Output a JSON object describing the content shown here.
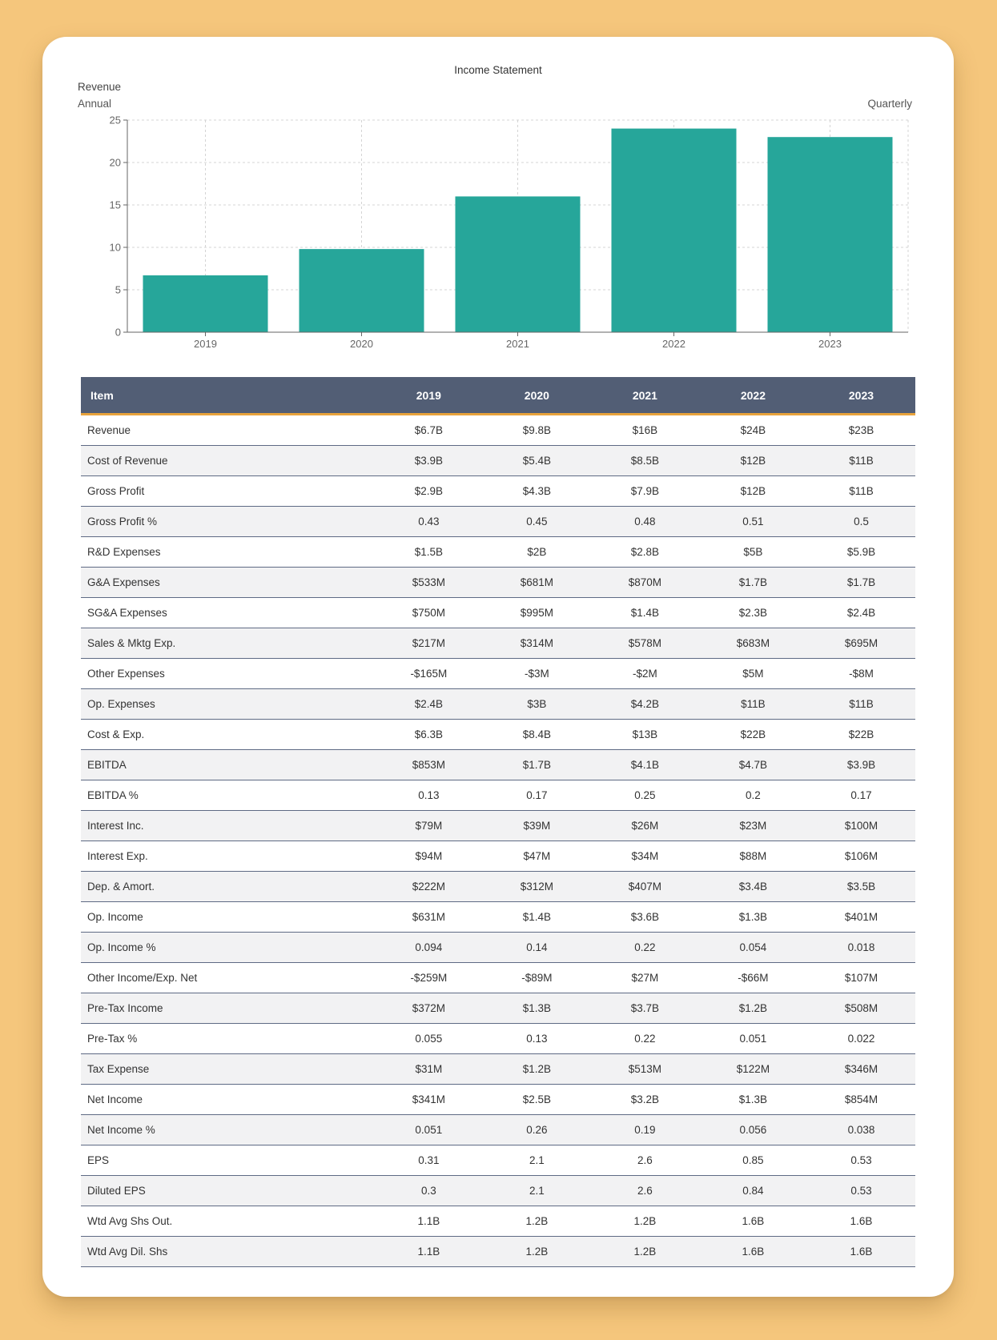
{
  "chart": {
    "title": "Income Statement",
    "metric": "Revenue",
    "period_annual": "Annual",
    "period_quarterly": "Quarterly"
  },
  "chart_data": {
    "type": "bar",
    "categories": [
      "2019",
      "2020",
      "2021",
      "2022",
      "2023"
    ],
    "values": [
      6.7,
      9.8,
      16,
      24,
      23
    ],
    "ylim": [
      0,
      25
    ],
    "yticks": [
      0,
      5,
      10,
      15,
      20,
      25
    ],
    "grid": true,
    "bar_color": "#26a69a",
    "title": "Income Statement",
    "xlabel": "",
    "ylabel": ""
  },
  "table": {
    "headers": [
      "Item",
      "2019",
      "2020",
      "2021",
      "2022",
      "2023"
    ],
    "rows": [
      [
        "Revenue",
        "$6.7B",
        "$9.8B",
        "$16B",
        "$24B",
        "$23B"
      ],
      [
        "Cost of Revenue",
        "$3.9B",
        "$5.4B",
        "$8.5B",
        "$12B",
        "$11B"
      ],
      [
        "Gross Profit",
        "$2.9B",
        "$4.3B",
        "$7.9B",
        "$12B",
        "$11B"
      ],
      [
        "Gross Profit %",
        "0.43",
        "0.45",
        "0.48",
        "0.51",
        "0.5"
      ],
      [
        "R&D Expenses",
        "$1.5B",
        "$2B",
        "$2.8B",
        "$5B",
        "$5.9B"
      ],
      [
        "G&A Expenses",
        "$533M",
        "$681M",
        "$870M",
        "$1.7B",
        "$1.7B"
      ],
      [
        "SG&A Expenses",
        "$750M",
        "$995M",
        "$1.4B",
        "$2.3B",
        "$2.4B"
      ],
      [
        "Sales & Mktg Exp.",
        "$217M",
        "$314M",
        "$578M",
        "$683M",
        "$695M"
      ],
      [
        "Other Expenses",
        "-$165M",
        "-$3M",
        "-$2M",
        "$5M",
        "-$8M"
      ],
      [
        "Op. Expenses",
        "$2.4B",
        "$3B",
        "$4.2B",
        "$11B",
        "$11B"
      ],
      [
        "Cost & Exp.",
        "$6.3B",
        "$8.4B",
        "$13B",
        "$22B",
        "$22B"
      ],
      [
        "EBITDA",
        "$853M",
        "$1.7B",
        "$4.1B",
        "$4.7B",
        "$3.9B"
      ],
      [
        "EBITDA %",
        "0.13",
        "0.17",
        "0.25",
        "0.2",
        "0.17"
      ],
      [
        "Interest Inc.",
        "$79M",
        "$39M",
        "$26M",
        "$23M",
        "$100M"
      ],
      [
        "Interest Exp.",
        "$94M",
        "$47M",
        "$34M",
        "$88M",
        "$106M"
      ],
      [
        "Dep. & Amort.",
        "$222M",
        "$312M",
        "$407M",
        "$3.4B",
        "$3.5B"
      ],
      [
        "Op. Income",
        "$631M",
        "$1.4B",
        "$3.6B",
        "$1.3B",
        "$401M"
      ],
      [
        "Op. Income %",
        "0.094",
        "0.14",
        "0.22",
        "0.054",
        "0.018"
      ],
      [
        "Other Income/Exp. Net",
        "-$259M",
        "-$89M",
        "$27M",
        "-$66M",
        "$107M"
      ],
      [
        "Pre-Tax Income",
        "$372M",
        "$1.3B",
        "$3.7B",
        "$1.2B",
        "$508M"
      ],
      [
        "Pre-Tax %",
        "0.055",
        "0.13",
        "0.22",
        "0.051",
        "0.022"
      ],
      [
        "Tax Expense",
        "$31M",
        "$1.2B",
        "$513M",
        "$122M",
        "$346M"
      ],
      [
        "Net Income",
        "$341M",
        "$2.5B",
        "$3.2B",
        "$1.3B",
        "$854M"
      ],
      [
        "Net Income %",
        "0.051",
        "0.26",
        "0.19",
        "0.056",
        "0.038"
      ],
      [
        "EPS",
        "0.31",
        "2.1",
        "2.6",
        "0.85",
        "0.53"
      ],
      [
        "Diluted EPS",
        "0.3",
        "2.1",
        "2.6",
        "0.84",
        "0.53"
      ],
      [
        "Wtd Avg Shs Out.",
        "1.1B",
        "1.2B",
        "1.2B",
        "1.6B",
        "1.6B"
      ],
      [
        "Wtd Avg Dil. Shs",
        "1.1B",
        "1.2B",
        "1.2B",
        "1.6B",
        "1.6B"
      ]
    ]
  }
}
